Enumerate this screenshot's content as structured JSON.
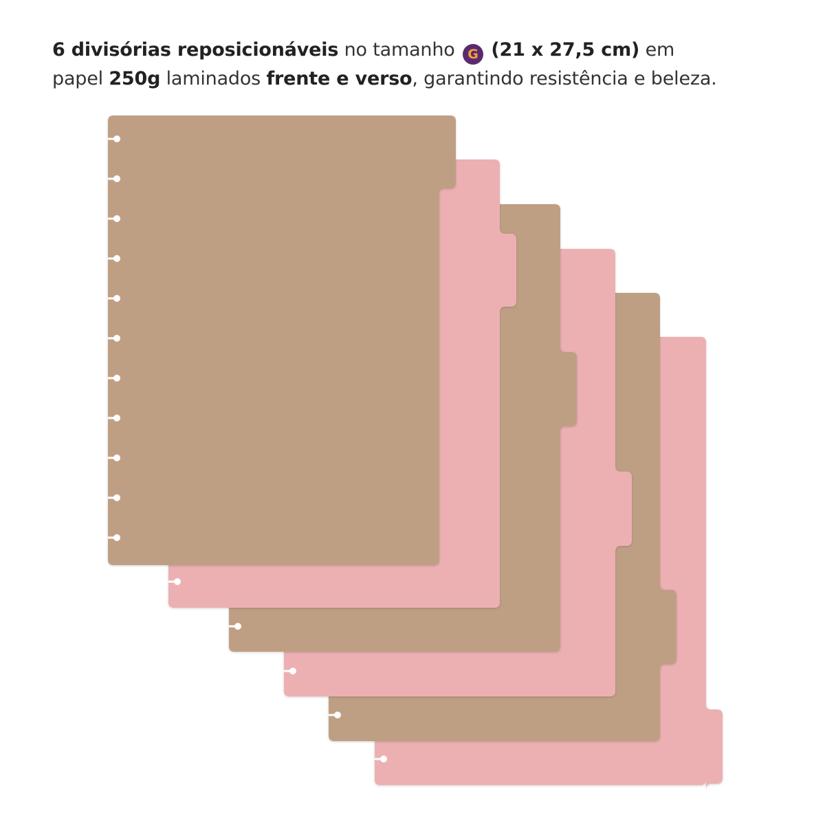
{
  "headline": {
    "line1": {
      "part1": "6 divisórias reposicionáveis",
      "part2": "no tamanho",
      "badge": "G",
      "part3": "(21 x 27,5 cm)",
      "part4": "em"
    },
    "line2": {
      "part1": "papel",
      "part2": "250g",
      "part3": "laminados",
      "part4": "frente e verso",
      "part5": ", garantindo resistência e beleza."
    }
  },
  "colors": {
    "kraft": "#bf9f84",
    "pink": "#ecb0b3",
    "badge_bg": "#5a2a6e",
    "badge_text": "#f2a13a",
    "hole": "#ffffff"
  },
  "dividers": [
    {
      "name": "divider-1",
      "color": "kraft",
      "tab": 1
    },
    {
      "name": "divider-2",
      "color": "pink",
      "tab": 2
    },
    {
      "name": "divider-3",
      "color": "kraft",
      "tab": 3
    },
    {
      "name": "divider-4",
      "color": "pink",
      "tab": 4
    },
    {
      "name": "divider-5",
      "color": "kraft",
      "tab": 5
    },
    {
      "name": "divider-6",
      "color": "pink",
      "tab": 6
    }
  ]
}
